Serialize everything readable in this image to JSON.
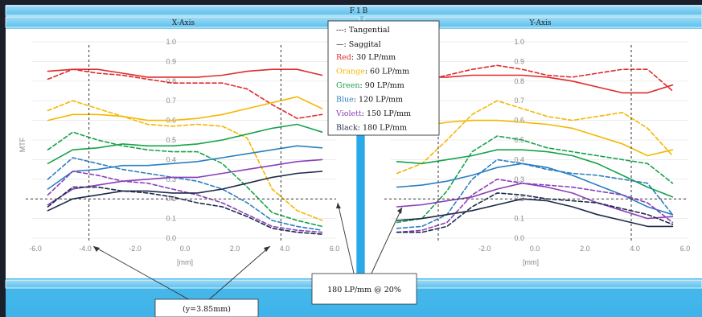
{
  "header": {
    "title": "F1B",
    "left_panel": "X-Axis",
    "right_panel": "Y-Axis"
  },
  "legend": {
    "tangential": "---: Tangential",
    "saggital": "—: Saggital",
    "entries": [
      {
        "color_name": "Red",
        "value": ": 30 LP/mm",
        "color": "#e02a2a"
      },
      {
        "color_name": "Orange",
        "value": ": 60 LP/mm",
        "color": "#f5b700"
      },
      {
        "color_name": "Green",
        "value": ": 90 LP/mm",
        "color": "#16a24a"
      },
      {
        "color_name": "Blue",
        "value": ": 120 LP/mm",
        "color": "#2b7fc0"
      },
      {
        "color_name": "Violett",
        "value": ": 150 LP/mm",
        "color": "#8a3fb8"
      },
      {
        "color_name": "Black",
        "value": ": 180 LP/mm",
        "color": "#1d2a4a"
      }
    ]
  },
  "annotations": {
    "y_label": "(y=3.85mm)",
    "threshold_label": "180 LP/mm @ 20%"
  },
  "chart_data": [
    {
      "type": "line",
      "title": "X-Axis",
      "xlabel": "[mm]",
      "ylabel": "MTF",
      "xlim": [
        -6.0,
        6.0
      ],
      "ylim": [
        0.0,
        1.0
      ],
      "x_ticks": [
        "-6.0",
        "-4.0",
        "-2.0",
        "0.0",
        "2.0",
        "4.0",
        "6.0"
      ],
      "y_ticks": [
        "0.0",
        "0.1",
        "0.2",
        "0.3",
        "0.4",
        "0.5",
        "0.6",
        "0.7",
        "0.8",
        "0.9",
        "1.0"
      ],
      "vlines": [
        -3.85,
        3.85
      ],
      "hline": 0.2,
      "x": [
        -5.5,
        -4.5,
        -3.5,
        -2.5,
        -1.5,
        -0.5,
        0.5,
        1.5,
        2.5,
        3.5,
        4.5,
        5.5
      ],
      "series": [
        {
          "color": "#e02a2a",
          "style": "solid",
          "values": [
            0.85,
            0.86,
            0.86,
            0.84,
            0.82,
            0.82,
            0.82,
            0.83,
            0.85,
            0.86,
            0.86,
            0.83
          ]
        },
        {
          "color": "#e02a2a",
          "style": "dashed",
          "values": [
            0.81,
            0.86,
            0.84,
            0.83,
            0.81,
            0.79,
            0.79,
            0.79,
            0.76,
            0.68,
            0.61,
            0.63
          ]
        },
        {
          "color": "#f5b700",
          "style": "solid",
          "values": [
            0.6,
            0.63,
            0.63,
            0.62,
            0.6,
            0.6,
            0.61,
            0.63,
            0.66,
            0.69,
            0.72,
            0.66
          ]
        },
        {
          "color": "#f5b700",
          "style": "dashed",
          "values": [
            0.65,
            0.7,
            0.66,
            0.62,
            0.58,
            0.57,
            0.58,
            0.57,
            0.51,
            0.25,
            0.14,
            0.09
          ]
        },
        {
          "color": "#16a24a",
          "style": "solid",
          "values": [
            0.38,
            0.45,
            0.46,
            0.48,
            0.47,
            0.47,
            0.48,
            0.5,
            0.53,
            0.56,
            0.58,
            0.54
          ]
        },
        {
          "color": "#16a24a",
          "style": "dashed",
          "values": [
            0.45,
            0.54,
            0.5,
            0.47,
            0.45,
            0.44,
            0.44,
            0.38,
            0.26,
            0.13,
            0.09,
            0.06
          ]
        },
        {
          "color": "#2b7fc0",
          "style": "solid",
          "values": [
            0.25,
            0.34,
            0.35,
            0.37,
            0.37,
            0.38,
            0.39,
            0.41,
            0.43,
            0.45,
            0.47,
            0.46
          ]
        },
        {
          "color": "#2b7fc0",
          "style": "dashed",
          "values": [
            0.3,
            0.41,
            0.38,
            0.35,
            0.33,
            0.31,
            0.29,
            0.25,
            0.18,
            0.09,
            0.06,
            0.04
          ]
        },
        {
          "color": "#8a3fb8",
          "style": "solid",
          "values": [
            0.17,
            0.25,
            0.27,
            0.29,
            0.3,
            0.31,
            0.31,
            0.33,
            0.35,
            0.37,
            0.39,
            0.4
          ]
        },
        {
          "color": "#8a3fb8",
          "style": "dashed",
          "values": [
            0.22,
            0.34,
            0.32,
            0.29,
            0.28,
            0.25,
            0.22,
            0.18,
            0.12,
            0.06,
            0.04,
            0.03
          ]
        },
        {
          "color": "#1d2a4a",
          "style": "solid",
          "values": [
            0.14,
            0.2,
            0.22,
            0.24,
            0.24,
            0.23,
            0.23,
            0.25,
            0.28,
            0.31,
            0.33,
            0.34
          ]
        },
        {
          "color": "#1d2a4a",
          "style": "dashed",
          "values": [
            0.16,
            0.26,
            0.26,
            0.24,
            0.23,
            0.21,
            0.18,
            0.16,
            0.11,
            0.05,
            0.03,
            0.02
          ]
        }
      ]
    },
    {
      "type": "line",
      "title": "Y-Axis",
      "xlabel": "[mm]",
      "ylabel": "",
      "xlim": [
        -6.0,
        6.0
      ],
      "ylim": [
        0.0,
        1.0
      ],
      "x_ticks": [
        "-2.0",
        "0.0",
        "2.0",
        "4.0",
        "6.0"
      ],
      "y_ticks": [
        "0.0",
        "0.1",
        "0.2",
        "0.3",
        "0.4",
        "0.5",
        "0.6",
        "0.7",
        "0.8",
        "0.9",
        "1.0"
      ],
      "vlines": [
        -3.85,
        3.85
      ],
      "hline": 0.2,
      "x": [
        -5.5,
        -4.5,
        -3.5,
        -2.5,
        -1.5,
        -0.5,
        0.5,
        1.5,
        2.5,
        3.5,
        4.5,
        5.5
      ],
      "series": [
        {
          "color": "#e02a2a",
          "style": "solid",
          "values": [
            0.83,
            0.82,
            0.82,
            0.83,
            0.83,
            0.83,
            0.82,
            0.8,
            0.77,
            0.74,
            0.74,
            0.78
          ]
        },
        {
          "color": "#e02a2a",
          "style": "dashed",
          "values": [
            0.76,
            0.8,
            0.83,
            0.86,
            0.88,
            0.86,
            0.83,
            0.82,
            0.84,
            0.86,
            0.86,
            0.75
          ]
        },
        {
          "color": "#f5b700",
          "style": "solid",
          "values": [
            0.55,
            0.57,
            0.59,
            0.6,
            0.6,
            0.59,
            0.58,
            0.56,
            0.52,
            0.48,
            0.42,
            0.45
          ]
        },
        {
          "color": "#f5b700",
          "style": "dashed",
          "values": [
            0.33,
            0.38,
            0.5,
            0.63,
            0.7,
            0.66,
            0.62,
            0.6,
            0.62,
            0.64,
            0.56,
            0.42
          ]
        },
        {
          "color": "#16a24a",
          "style": "solid",
          "values": [
            0.39,
            0.38,
            0.4,
            0.42,
            0.45,
            0.45,
            0.44,
            0.42,
            0.38,
            0.32,
            0.26,
            0.21
          ]
        },
        {
          "color": "#16a24a",
          "style": "dashed",
          "values": [
            0.08,
            0.1,
            0.24,
            0.44,
            0.52,
            0.5,
            0.46,
            0.44,
            0.42,
            0.4,
            0.38,
            0.28
          ]
        },
        {
          "color": "#2b7fc0",
          "style": "solid",
          "values": [
            0.26,
            0.27,
            0.29,
            0.32,
            0.36,
            0.38,
            0.36,
            0.32,
            0.27,
            0.22,
            0.16,
            0.12
          ]
        },
        {
          "color": "#2b7fc0",
          "style": "dashed",
          "values": [
            0.05,
            0.06,
            0.12,
            0.3,
            0.4,
            0.38,
            0.35,
            0.33,
            0.32,
            0.3,
            0.28,
            0.12
          ]
        },
        {
          "color": "#8a3fb8",
          "style": "solid",
          "values": [
            0.16,
            0.17,
            0.19,
            0.21,
            0.25,
            0.28,
            0.26,
            0.23,
            0.18,
            0.14,
            0.1,
            0.11
          ]
        },
        {
          "color": "#8a3fb8",
          "style": "dashed",
          "values": [
            0.03,
            0.04,
            0.08,
            0.22,
            0.3,
            0.28,
            0.27,
            0.26,
            0.24,
            0.22,
            0.18,
            0.08
          ]
        },
        {
          "color": "#1d2a4a",
          "style": "solid",
          "values": [
            0.09,
            0.1,
            0.12,
            0.14,
            0.17,
            0.2,
            0.19,
            0.16,
            0.12,
            0.09,
            0.06,
            0.06
          ]
        },
        {
          "color": "#1d2a4a",
          "style": "dashed",
          "values": [
            0.03,
            0.03,
            0.06,
            0.16,
            0.23,
            0.22,
            0.2,
            0.19,
            0.18,
            0.15,
            0.12,
            0.07
          ]
        }
      ]
    }
  ]
}
